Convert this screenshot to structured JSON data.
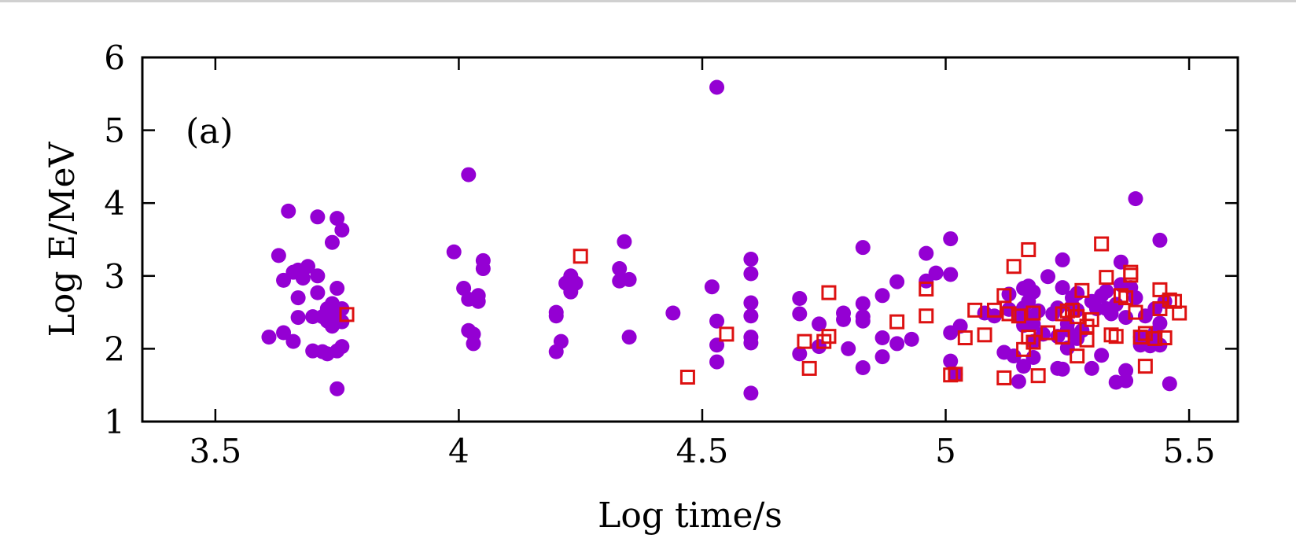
{
  "chart_data": {
    "type": "scatter",
    "title": "",
    "panel_label": "(a)",
    "xlabel": "Log time/s",
    "ylabel": "Log E/MeV",
    "xlim": [
      3.35,
      5.6
    ],
    "ylim": [
      1,
      6
    ],
    "xticks": [
      3.5,
      4,
      4.5,
      5,
      5.5
    ],
    "xtick_labels": [
      "3.5",
      "4",
      "4.5",
      "5",
      "5.5"
    ],
    "yticks": [
      1,
      2,
      3,
      4,
      5,
      6
    ],
    "ytick_labels": [
      "1",
      "2",
      "3",
      "4",
      "5",
      "6"
    ],
    "grid": false,
    "legend": "none",
    "series": [
      {
        "marker": "filled-circle",
        "color": "#9400D3",
        "points": [
          [
            3.61,
            2.16
          ],
          [
            3.63,
            3.28
          ],
          [
            3.64,
            2.94
          ],
          [
            3.64,
            2.22
          ],
          [
            3.65,
            3.89
          ],
          [
            3.66,
            3.05
          ],
          [
            3.66,
            2.1
          ],
          [
            3.67,
            3.08
          ],
          [
            3.67,
            2.7
          ],
          [
            3.67,
            2.43
          ],
          [
            3.68,
            2.97
          ],
          [
            3.69,
            3.13
          ],
          [
            3.7,
            2.44
          ],
          [
            3.7,
            1.97
          ],
          [
            3.71,
            3.81
          ],
          [
            3.71,
            3.0
          ],
          [
            3.71,
            2.77
          ],
          [
            3.72,
            2.44
          ],
          [
            3.72,
            1.96
          ],
          [
            3.73,
            2.38
          ],
          [
            3.73,
            2.55
          ],
          [
            3.73,
            1.93
          ],
          [
            3.74,
            2.31
          ],
          [
            3.74,
            3.46
          ],
          [
            3.74,
            2.62
          ],
          [
            3.75,
            3.79
          ],
          [
            3.75,
            2.83
          ],
          [
            3.75,
            2.46
          ],
          [
            3.75,
            1.97
          ],
          [
            3.76,
            3.63
          ],
          [
            3.76,
            2.55
          ],
          [
            3.76,
            2.37
          ],
          [
            3.76,
            2.03
          ],
          [
            3.75,
            1.45
          ],
          [
            3.99,
            3.33
          ],
          [
            4.01,
            2.83
          ],
          [
            4.02,
            2.68
          ],
          [
            4.02,
            2.25
          ],
          [
            4.02,
            4.39
          ],
          [
            4.03,
            2.2
          ],
          [
            4.03,
            2.07
          ],
          [
            4.04,
            2.73
          ],
          [
            4.04,
            2.65
          ],
          [
            4.05,
            3.21
          ],
          [
            4.05,
            3.1
          ],
          [
            4.2,
            2.5
          ],
          [
            4.2,
            2.45
          ],
          [
            4.2,
            1.96
          ],
          [
            4.21,
            2.1
          ],
          [
            4.22,
            2.9
          ],
          [
            4.23,
            3.0
          ],
          [
            4.23,
            2.78
          ],
          [
            4.24,
            2.9
          ],
          [
            4.33,
            3.1
          ],
          [
            4.33,
            2.93
          ],
          [
            4.34,
            3.47
          ],
          [
            4.35,
            2.95
          ],
          [
            4.35,
            2.16
          ],
          [
            4.44,
            2.49
          ],
          [
            4.52,
            2.85
          ],
          [
            4.53,
            5.59
          ],
          [
            4.53,
            2.38
          ],
          [
            4.53,
            2.05
          ],
          [
            4.53,
            1.82
          ],
          [
            4.6,
            3.23
          ],
          [
            4.6,
            3.03
          ],
          [
            4.6,
            2.63
          ],
          [
            4.6,
            2.45
          ],
          [
            4.6,
            2.16
          ],
          [
            4.6,
            2.08
          ],
          [
            4.6,
            1.39
          ],
          [
            4.7,
            2.69
          ],
          [
            4.7,
            2.48
          ],
          [
            4.7,
            1.93
          ],
          [
            4.74,
            2.34
          ],
          [
            4.74,
            2.03
          ],
          [
            4.79,
            2.49
          ],
          [
            4.79,
            2.4
          ],
          [
            4.8,
            2.0
          ],
          [
            4.83,
            3.39
          ],
          [
            4.83,
            2.62
          ],
          [
            4.83,
            2.44
          ],
          [
            4.83,
            2.38
          ],
          [
            4.83,
            1.74
          ],
          [
            4.87,
            2.73
          ],
          [
            4.87,
            2.15
          ],
          [
            4.87,
            1.89
          ],
          [
            4.9,
            2.92
          ],
          [
            4.9,
            2.07
          ],
          [
            4.93,
            2.13
          ],
          [
            4.96,
            3.31
          ],
          [
            4.96,
            2.93
          ],
          [
            4.98,
            3.04
          ],
          [
            5.01,
            3.51
          ],
          [
            5.01,
            3.02
          ],
          [
            5.01,
            2.22
          ],
          [
            5.01,
            1.83
          ],
          [
            5.02,
            1.65
          ],
          [
            5.03,
            2.31
          ],
          [
            5.08,
            2.49
          ],
          [
            5.1,
            2.45
          ],
          [
            5.12,
            1.95
          ],
          [
            5.13,
            2.75
          ],
          [
            5.13,
            2.54
          ],
          [
            5.14,
            1.9
          ],
          [
            5.15,
            2.46
          ],
          [
            5.15,
            1.55
          ],
          [
            5.16,
            2.83
          ],
          [
            5.16,
            2.56
          ],
          [
            5.16,
            2.44
          ],
          [
            5.16,
            2.32
          ],
          [
            5.16,
            1.76
          ],
          [
            5.17,
            2.86
          ],
          [
            5.17,
            2.65
          ],
          [
            5.18,
            2.44
          ],
          [
            5.18,
            2.34
          ],
          [
            5.18,
            2.1
          ],
          [
            5.18,
            1.88
          ],
          [
            5.18,
            2.78
          ],
          [
            5.19,
            2.52
          ],
          [
            5.2,
            2.2
          ],
          [
            5.21,
            2.99
          ],
          [
            5.22,
            2.48
          ],
          [
            5.23,
            2.56
          ],
          [
            5.23,
            2.17
          ],
          [
            5.23,
            1.73
          ],
          [
            5.24,
            3.22
          ],
          [
            5.24,
            2.84
          ],
          [
            5.24,
            1.72
          ],
          [
            5.25,
            2.34
          ],
          [
            5.25,
            2.26
          ],
          [
            5.25,
            2.01
          ],
          [
            5.26,
            2.7
          ],
          [
            5.26,
            2.59
          ],
          [
            5.27,
            2.76
          ],
          [
            5.27,
            2.53
          ],
          [
            5.27,
            2.14
          ],
          [
            5.28,
            2.25
          ],
          [
            5.3,
            2.65
          ],
          [
            5.3,
            1.73
          ],
          [
            5.31,
            2.55
          ],
          [
            5.32,
            2.73
          ],
          [
            5.32,
            1.91
          ],
          [
            5.33,
            2.79
          ],
          [
            5.33,
            2.55
          ],
          [
            5.34,
            2.48
          ],
          [
            5.35,
            2.61
          ],
          [
            5.35,
            1.54
          ],
          [
            5.36,
            3.19
          ],
          [
            5.36,
            2.88
          ],
          [
            5.37,
            2.43
          ],
          [
            5.37,
            1.7
          ],
          [
            5.37,
            1.56
          ],
          [
            5.38,
            2.84
          ],
          [
            5.39,
            4.06
          ],
          [
            5.39,
            2.7
          ],
          [
            5.4,
            2.16
          ],
          [
            5.4,
            2.05
          ],
          [
            5.41,
            2.45
          ],
          [
            5.42,
            2.12
          ],
          [
            5.42,
            2.04
          ],
          [
            5.43,
            2.55
          ],
          [
            5.43,
            2.22
          ],
          [
            5.44,
            3.49
          ],
          [
            5.44,
            2.35
          ],
          [
            5.44,
            2.05
          ],
          [
            5.45,
            2.65
          ],
          [
            5.46,
            1.52
          ]
        ]
      },
      {
        "marker": "open-square",
        "color": "#DD1111",
        "points": [
          [
            3.77,
            2.47
          ],
          [
            4.25,
            3.27
          ],
          [
            4.47,
            1.61
          ],
          [
            4.55,
            2.2
          ],
          [
            4.71,
            2.1
          ],
          [
            4.72,
            1.73
          ],
          [
            4.75,
            2.1
          ],
          [
            4.76,
            2.17
          ],
          [
            4.76,
            2.77
          ],
          [
            4.9,
            2.37
          ],
          [
            4.96,
            2.82
          ],
          [
            4.96,
            2.45
          ],
          [
            5.01,
            1.64
          ],
          [
            5.02,
            1.65
          ],
          [
            5.04,
            2.15
          ],
          [
            5.06,
            2.53
          ],
          [
            5.08,
            2.19
          ],
          [
            5.1,
            2.53
          ],
          [
            5.12,
            2.73
          ],
          [
            5.12,
            1.6
          ],
          [
            5.13,
            2.48
          ],
          [
            5.14,
            3.13
          ],
          [
            5.15,
            2.45
          ],
          [
            5.16,
            1.99
          ],
          [
            5.17,
            3.36
          ],
          [
            5.17,
            2.16
          ],
          [
            5.18,
            2.49
          ],
          [
            5.18,
            2.09
          ],
          [
            5.19,
            1.63
          ],
          [
            5.21,
            2.22
          ],
          [
            5.24,
            2.48
          ],
          [
            5.24,
            2.16
          ],
          [
            5.25,
            2.52
          ],
          [
            5.26,
            2.53
          ],
          [
            5.27,
            2.44
          ],
          [
            5.27,
            1.9
          ],
          [
            5.28,
            2.8
          ],
          [
            5.29,
            2.12
          ],
          [
            5.29,
            2.31
          ],
          [
            5.3,
            2.4
          ],
          [
            5.32,
            3.44
          ],
          [
            5.33,
            2.98
          ],
          [
            5.34,
            2.19
          ],
          [
            5.35,
            2.17
          ],
          [
            5.36,
            2.73
          ],
          [
            5.37,
            2.7
          ],
          [
            5.38,
            3.05
          ],
          [
            5.38,
            3.01
          ],
          [
            5.39,
            2.5
          ],
          [
            5.4,
            2.16
          ],
          [
            5.41,
            2.21
          ],
          [
            5.41,
            1.76
          ],
          [
            5.43,
            2.14
          ],
          [
            5.44,
            2.81
          ],
          [
            5.44,
            2.55
          ],
          [
            5.45,
            2.15
          ],
          [
            5.46,
            2.67
          ],
          [
            5.47,
            2.65
          ],
          [
            5.48,
            2.49
          ]
        ]
      }
    ]
  }
}
